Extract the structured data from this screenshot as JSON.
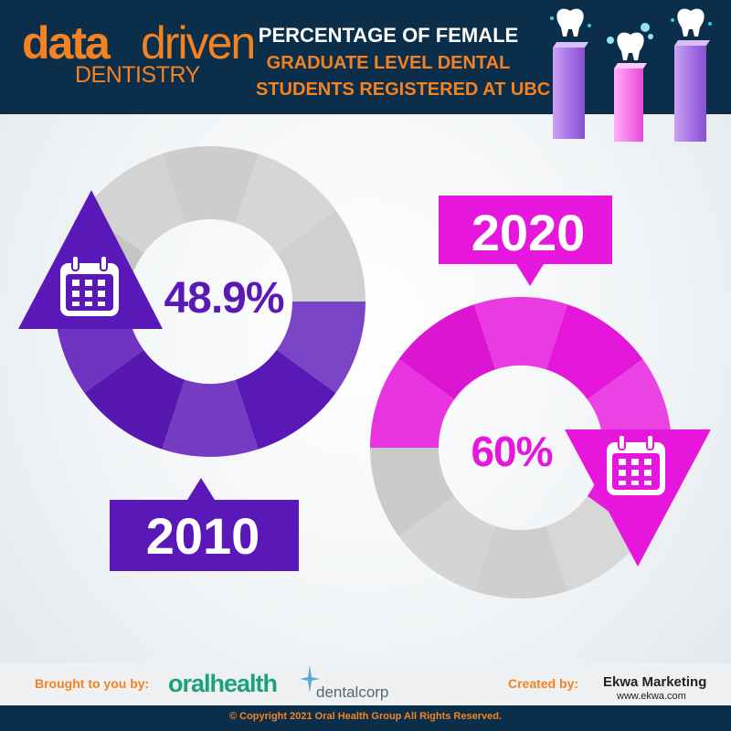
{
  "header": {
    "logo_data": "data",
    "logo_driven": "driven",
    "logo_sub": "DENTISTRY",
    "title_lines": [
      "PERCENTAGE OF FEMALE",
      "GRADUATE LEVEL DENTAL",
      "STUDENTS REGISTERED AT UBC"
    ]
  },
  "chart_data": {
    "type": "pie",
    "categories": [
      "2010",
      "2020"
    ],
    "values": [
      48.9,
      60
    ],
    "value_labels": [
      "48.9%",
      "60%"
    ],
    "unit": "%",
    "colors": {
      "2010": "#5b18b8",
      "2020": "#e616dc",
      "remainder": "#cccccc"
    },
    "title": "PERCENTAGE OF FEMALE GRADUATE LEVEL DENTAL STUDENTS REGISTERED AT UBC"
  },
  "footer": {
    "brought_label": "Brought to you by:",
    "sponsor_1": "oralhealth",
    "sponsor_2": "dentalcorp",
    "created_label": "Created by:",
    "creator_name": "Ekwa Marketing",
    "creator_url": "www.ekwa.com",
    "copyright": "© Copyright 2021 Oral Health Group All Rights Reserved."
  }
}
